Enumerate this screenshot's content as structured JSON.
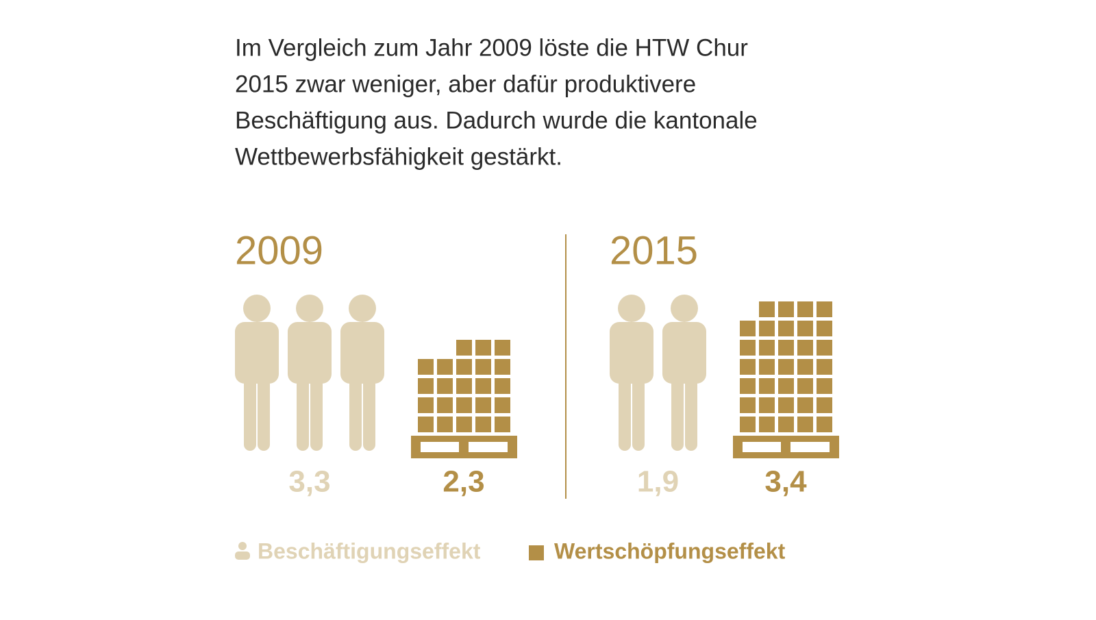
{
  "chart_data": {
    "type": "pictogram",
    "description": [
      "Im Vergleich zum Jahr 2009 löste die HTW Chur",
      "2015 zwar weniger, aber dafür produktivere",
      "Beschäftigung aus. Dadurch wurde die kantonale",
      "Wettbewerbsfähigkeit gestärkt."
    ],
    "categories": [
      "2009",
      "2015"
    ],
    "series": [
      {
        "name": "Beschäftigungseffekt",
        "color": "#e0d3b5",
        "values": [
          3.3,
          1.9
        ],
        "value_labels": [
          "3,3",
          "1,9"
        ]
      },
      {
        "name": "Wertschöpfungseffekt",
        "color": "#b38f47",
        "values": [
          2.3,
          3.4
        ],
        "value_labels": [
          "2,3",
          "3,4"
        ]
      }
    ]
  }
}
